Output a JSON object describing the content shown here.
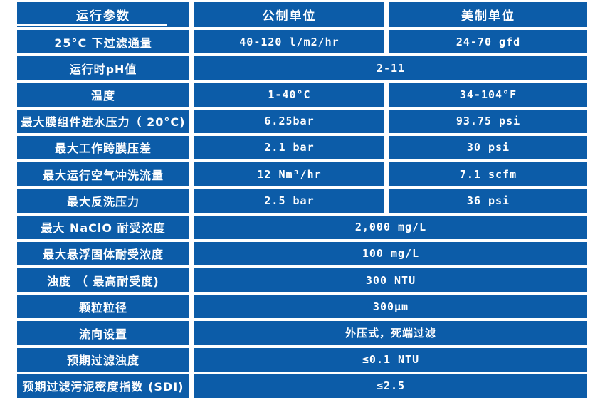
{
  "colors": {
    "cell_blue": "#0C5CA8",
    "text_white": "#FFFFFF",
    "gap_white": "#FFFFFF"
  },
  "table": {
    "headers": [
      "运行参数",
      "公制单位",
      "美制单位"
    ],
    "rows": [
      {
        "label": "25°C 下过滤通量",
        "metric": "40-120 l/m2/hr",
        "us": "24-70 gfd"
      },
      {
        "label": "运行时pH值",
        "value": "2-11"
      },
      {
        "label": "温度",
        "metric": "1-40°C",
        "us": "34-104°F"
      },
      {
        "label": "最大膜组件进水压力（ 20°C)",
        "metric": "6.25bar",
        "us": "93.75 psi"
      },
      {
        "label": "最大工作跨膜压差",
        "metric": "2.1 bar",
        "us": "30 psi"
      },
      {
        "label": "最大运行空气冲洗流量",
        "metric": "12 Nm³/hr",
        "us": "7.1 scfm"
      },
      {
        "label": "最大反洗压力",
        "metric": "2.5 bar",
        "us": "36 psi"
      },
      {
        "label": "最大 NaClO 耐受浓度",
        "value": "2,000 mg/L"
      },
      {
        "label": "最大悬浮固体耐受浓度",
        "value": "100 mg/L"
      },
      {
        "label": "浊度 （ 最高耐受度)",
        "value": "300 NTU"
      },
      {
        "label": "颗粒粒径",
        "value": "300μm"
      },
      {
        "label": "流向设置",
        "value": "外压式，死端过滤"
      },
      {
        "label": "预期过滤浊度",
        "value": "≤0.1 NTU"
      },
      {
        "label": "预期过滤污泥密度指数 (SDI)",
        "value": "≤2.5"
      }
    ]
  }
}
